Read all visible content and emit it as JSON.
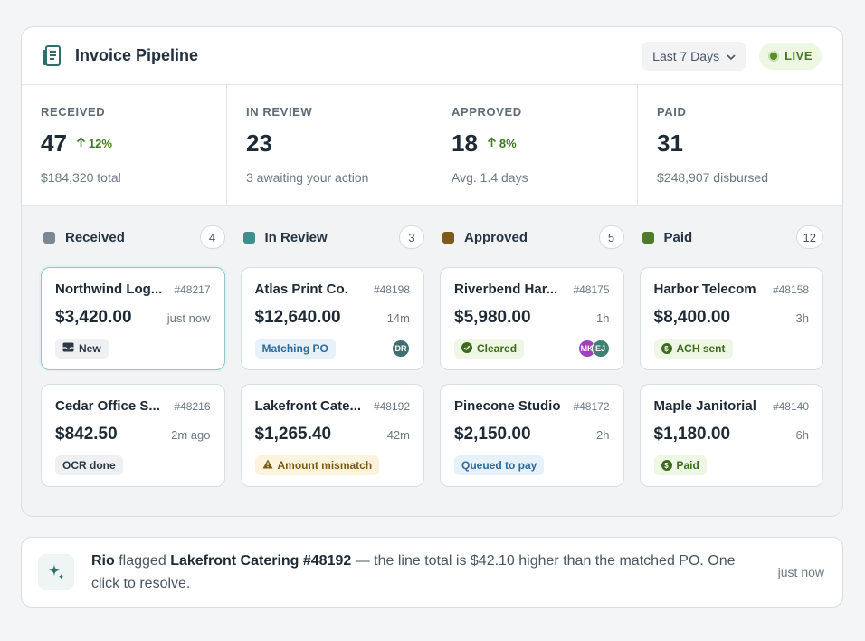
{
  "header": {
    "title": "Invoice Pipeline",
    "range_label": "Last 7 Days",
    "live_label": "LIVE"
  },
  "stats": [
    {
      "label": "RECEIVED",
      "value": "47",
      "delta": "12%",
      "sub": "$184,320 total"
    },
    {
      "label": "IN REVIEW",
      "value": "23",
      "delta": "",
      "sub": "3 awaiting your action"
    },
    {
      "label": "APPROVED",
      "value": "18",
      "delta": "8%",
      "sub": "Avg. 1.4 days"
    },
    {
      "label": "PAID",
      "value": "31",
      "delta": "",
      "sub": "$248,907 disbursed"
    }
  ],
  "columns": [
    {
      "title": "Received",
      "count": "4",
      "color": "#7c8794",
      "cards": [
        {
          "name": "Northwind Log...",
          "id": "#48217",
          "amount": "$3,420.00",
          "time": "just now",
          "badge": "New",
          "badge_icon": "inbox-icon"
        },
        {
          "name": "Cedar Office S...",
          "id": "#48216",
          "amount": "$842.50",
          "time": "2m ago",
          "badge": "OCR done"
        }
      ]
    },
    {
      "title": "In Review",
      "count": "3",
      "color": "#3f8f8b",
      "cards": [
        {
          "name": "Atlas Print Co.",
          "id": "#48198",
          "amount": "$12,640.00",
          "time": "14m",
          "badge": "Matching PO",
          "avatars": [
            "DR"
          ]
        },
        {
          "name": "Lakefront Cate...",
          "id": "#48192",
          "amount": "$1,265.40",
          "time": "42m",
          "badge": "Amount mismatch",
          "badge_icon": "warning-icon"
        }
      ]
    },
    {
      "title": "Approved",
      "count": "5",
      "color": "#7d5a1a",
      "cards": [
        {
          "name": "Riverbend Har...",
          "id": "#48175",
          "amount": "$5,980.00",
          "time": "1h",
          "badge": "Cleared",
          "badge_icon": "check-circle-icon",
          "avatars": [
            "MK",
            "EJ"
          ]
        },
        {
          "name": "Pinecone Studio",
          "id": "#48172",
          "amount": "$2,150.00",
          "time": "2h",
          "badge": "Queued to pay"
        }
      ]
    },
    {
      "title": "Paid",
      "count": "12",
      "color": "#4f7a2a",
      "cards": [
        {
          "name": "Harbor Telecom",
          "id": "#48158",
          "amount": "$8,400.00",
          "time": "3h",
          "badge": "ACH sent",
          "badge_icon": "dollar-coin-icon"
        },
        {
          "name": "Maple Janitorial",
          "id": "#48140",
          "amount": "$1,180.00",
          "time": "6h",
          "badge": "Paid",
          "badge_icon": "dollar-coin-icon"
        }
      ]
    }
  ],
  "notification": {
    "actor": "Rio",
    "verb": "flagged",
    "subject": "Lakefront Catering #48192",
    "message": "— the line total is $42.10 higher than the matched PO. One click to resolve.",
    "time": "just now"
  },
  "colors": {
    "accent": "#2f6f6b",
    "live": "#5b8c2a",
    "avatar_dr": "#3f6f70",
    "avatar_mk": "#a040c0",
    "avatar_ej": "#3f8070"
  }
}
